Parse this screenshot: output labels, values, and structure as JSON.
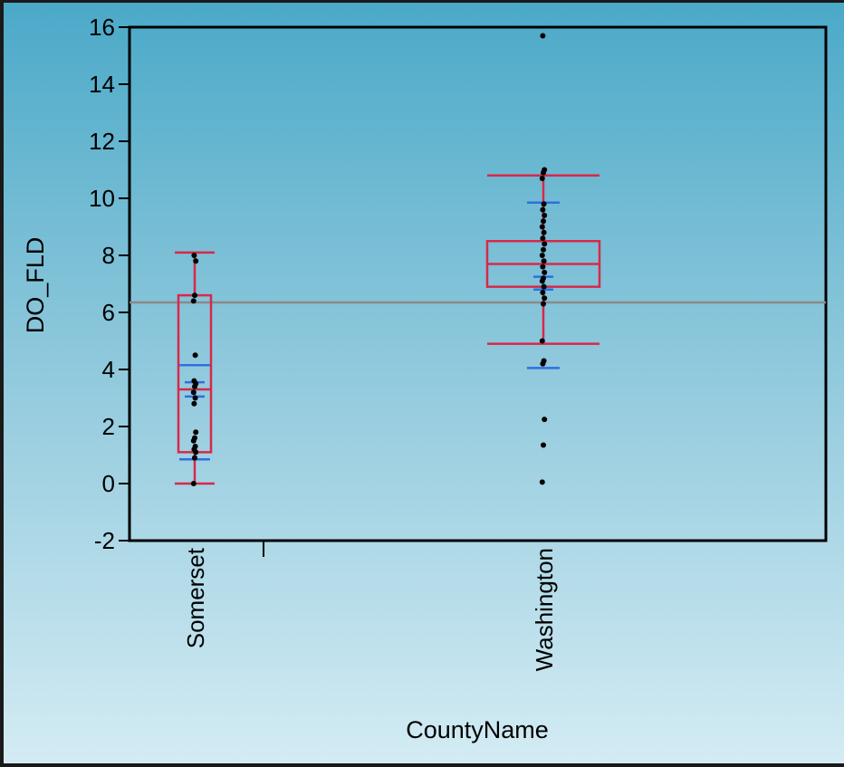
{
  "chart_data": {
    "type": "box",
    "xlabel": "CountyName",
    "ylabel": "DO_FLD",
    "ylim": [
      -2,
      16
    ],
    "yticks": [
      "16",
      "14",
      "12",
      "10",
      "8",
      "6",
      "4",
      "2",
      "0",
      "-2"
    ],
    "categories": [
      "Somerset",
      "Washington"
    ],
    "reference_line": 6.35,
    "boxes": [
      {
        "category": "Somerset",
        "min": 0.0,
        "q1": 1.1,
        "median": 3.3,
        "q3": 6.6,
        "max": 8.1,
        "mean": 3.3,
        "ci": [
          3.05,
          3.55
        ],
        "sd_range": [
          0.85,
          4.15
        ],
        "points": [
          0.0,
          0.9,
          1.1,
          1.2,
          1.3,
          1.5,
          1.6,
          1.8,
          2.8,
          3.0,
          3.2,
          3.4,
          3.5,
          3.6,
          4.5,
          6.4,
          6.6,
          7.8,
          8.0
        ]
      },
      {
        "category": "Washington",
        "min": 4.9,
        "q1": 6.9,
        "median": 7.7,
        "q3": 8.5,
        "max": 10.8,
        "mean": 7.1,
        "ci": [
          6.8,
          7.25
        ],
        "sd_range": [
          4.05,
          9.85
        ],
        "points": [
          0.05,
          1.35,
          2.25,
          4.2,
          4.3,
          5.0,
          6.3,
          6.5,
          6.7,
          6.9,
          7.1,
          7.2,
          7.4,
          7.6,
          7.8,
          8.0,
          8.2,
          8.4,
          8.6,
          8.8,
          9.0,
          9.2,
          9.4,
          9.6,
          9.8,
          10.7,
          10.9,
          11.0,
          15.7
        ]
      }
    ],
    "colors": {
      "box": "#d8284a",
      "sd": "#2f6fe0",
      "reference": "#8a8a8a",
      "points": "#000000"
    }
  }
}
